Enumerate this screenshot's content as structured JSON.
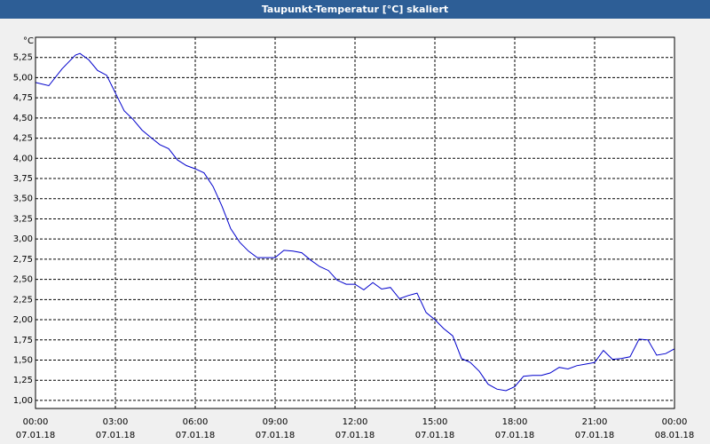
{
  "chart_data": {
    "type": "line",
    "title": "Taupunkt-Temperatur [°C] skaliert",
    "y_unit": "°C",
    "x": [
      0,
      0.5,
      1,
      1.5,
      1.67,
      2,
      2.33,
      2.67,
      3,
      3.33,
      3.67,
      4,
      4.33,
      4.67,
      5,
      5.33,
      5.67,
      6,
      6.33,
      6.67,
      7,
      7.33,
      7.67,
      8,
      8.33,
      8.67,
      9,
      9.33,
      9.67,
      10,
      10.33,
      10.67,
      11,
      11.33,
      11.67,
      12,
      12.33,
      12.67,
      13,
      13.33,
      13.67,
      14,
      14.33,
      14.67,
      15,
      15.33,
      15.67,
      16,
      16.33,
      16.67,
      17,
      17.33,
      17.67,
      18,
      18.33,
      18.67,
      19,
      19.33,
      19.67,
      20,
      20.33,
      20.67,
      21,
      21.33,
      21.67,
      22,
      22.33,
      22.67,
      23,
      23.33,
      23.67,
      24
    ],
    "values": [
      4.94,
      4.9,
      5.11,
      5.28,
      5.3,
      5.22,
      5.09,
      5.03,
      4.81,
      4.59,
      4.48,
      4.35,
      4.26,
      4.17,
      4.12,
      3.98,
      3.91,
      3.87,
      3.82,
      3.65,
      3.41,
      3.13,
      2.96,
      2.85,
      2.77,
      2.77,
      2.77,
      2.86,
      2.85,
      2.83,
      2.74,
      2.66,
      2.61,
      2.49,
      2.44,
      2.44,
      2.37,
      2.46,
      2.38,
      2.4,
      2.26,
      2.3,
      2.33,
      2.09,
      2.0,
      1.89,
      1.8,
      1.52,
      1.47,
      1.36,
      1.2,
      1.14,
      1.12,
      1.17,
      1.3,
      1.31,
      1.31,
      1.34,
      1.41,
      1.39,
      1.43,
      1.45,
      1.47,
      1.62,
      1.51,
      1.52,
      1.54,
      1.76,
      1.75,
      1.56,
      1.58,
      1.64
    ],
    "color": "#0000cc",
    "xlim": [
      0,
      24
    ],
    "xticks": [
      {
        "value": 0,
        "label": "00:00"
      },
      {
        "value": 3,
        "label": "03:00"
      },
      {
        "value": 6,
        "label": "06:00"
      },
      {
        "value": 9,
        "label": "09:00"
      },
      {
        "value": 12,
        "label": "12:00"
      },
      {
        "value": 15,
        "label": "15:00"
      },
      {
        "value": 18,
        "label": "18:00"
      },
      {
        "value": 21,
        "label": "21:00"
      },
      {
        "value": 24,
        "label": "00:00"
      }
    ],
    "xtick_dates": [
      "07.01.18",
      "07.01.18",
      "07.01.18",
      "07.01.18",
      "07.01.18",
      "07.01.18",
      "07.01.18",
      "07.01.18",
      "08.01.18"
    ],
    "ylim": [
      0.9,
      5.5
    ],
    "yticks": [
      {
        "value": 1,
        "label": "1,00"
      },
      {
        "value": 1.25,
        "label": "1,25"
      },
      {
        "value": 1.5,
        "label": "1,50"
      },
      {
        "value": 1.75,
        "label": "1,75"
      },
      {
        "value": 2,
        "label": "2,00"
      },
      {
        "value": 2.25,
        "label": "2,25"
      },
      {
        "value": 2.5,
        "label": "2,50"
      },
      {
        "value": 2.75,
        "label": "2,75"
      },
      {
        "value": 3,
        "label": "3,00"
      },
      {
        "value": 3.25,
        "label": "3,25"
      },
      {
        "value": 3.5,
        "label": "3,50"
      },
      {
        "value": 3.75,
        "label": "3,75"
      },
      {
        "value": 4,
        "label": "4,00"
      },
      {
        "value": 4.25,
        "label": "4,25"
      },
      {
        "value": 4.5,
        "label": "4,50"
      },
      {
        "value": 4.75,
        "label": "4,75"
      },
      {
        "value": 5,
        "label": "5,00"
      },
      {
        "value": 5.25,
        "label": "5,25"
      }
    ],
    "grid": true
  }
}
